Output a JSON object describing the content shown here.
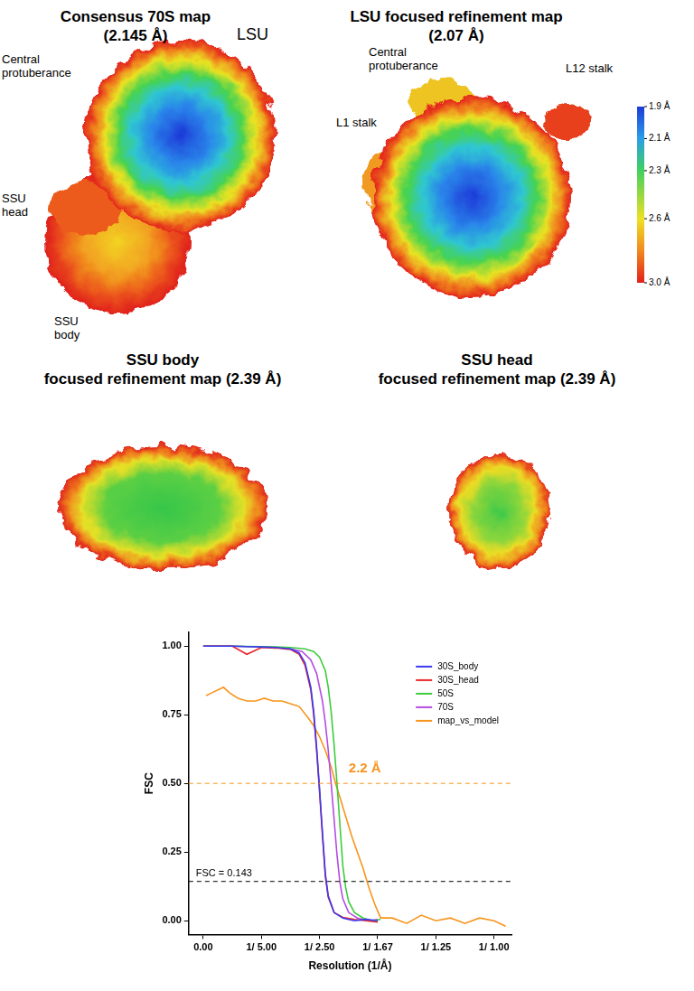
{
  "panels": [
    {
      "title": "Consensus 70S map",
      "subtitle": "(2.145 Å)",
      "labels": [
        "Central protuberance",
        "LSU",
        "SSU head",
        "SSU body"
      ]
    },
    {
      "title": "LSU focused refinement map",
      "subtitle": "(2.07 Å)",
      "labels": [
        "Central protuberance",
        "L1 stalk",
        "L12 stalk"
      ]
    },
    {
      "title": "SSU body",
      "subtitle": "focused refinement map (2.39 Å)"
    },
    {
      "title": "SSU head",
      "subtitle": "focused refinement map (2.39 Å)"
    }
  ],
  "colorbar": {
    "range": [
      1.9,
      3.0
    ],
    "ticks": [
      {
        "value": 1.9,
        "label": "1.9 Å"
      },
      {
        "value": 2.1,
        "label": "2.1 Å"
      },
      {
        "value": 2.3,
        "label": "2.3 Å"
      },
      {
        "value": 2.6,
        "label": "2.6 Å"
      },
      {
        "value": 3.0,
        "label": "3.0 Å"
      }
    ]
  },
  "chart_data": {
    "type": "line",
    "x_label": "Resolution (1/Å)",
    "y_label": "FSC",
    "xlim": [
      -0.05,
      1.06
    ],
    "ylim": [
      -0.05,
      1.05
    ],
    "xticks": [
      {
        "value": 0,
        "label": "0.00"
      },
      {
        "value": 0.2,
        "label": "1/ 5.00"
      },
      {
        "value": 0.4,
        "label": "1/ 2.50"
      },
      {
        "value": 0.6,
        "label": "1/ 1.67"
      },
      {
        "value": 0.8,
        "label": "1/ 1.25"
      },
      {
        "value": 1,
        "label": "1/ 1.00"
      }
    ],
    "yticks": [
      {
        "value": 0,
        "label": "0.00"
      },
      {
        "value": 0.25,
        "label": "0.25"
      },
      {
        "value": 0.5,
        "label": "0.50"
      },
      {
        "value": 0.75,
        "label": "0.75"
      },
      {
        "value": 1,
        "label": "1.00"
      }
    ],
    "grid": false,
    "legend": "upper right",
    "series": [
      {
        "name": "30S_body",
        "color": "#3a3af0",
        "x": [
          0.0,
          0.05,
          0.1,
          0.15,
          0.2,
          0.25,
          0.3,
          0.33,
          0.35,
          0.37,
          0.38,
          0.39,
          0.4,
          0.41,
          0.42,
          0.43,
          0.45,
          0.48,
          0.52,
          0.56,
          0.6
        ],
        "values": [
          1,
          1,
          1,
          0.998,
          0.997,
          0.995,
          0.99,
          0.975,
          0.94,
          0.85,
          0.76,
          0.63,
          0.48,
          0.32,
          0.17,
          0.09,
          0.03,
          0.01,
          0.0,
          0.005,
          0.0
        ]
      },
      {
        "name": "30S_head",
        "color": "#e8262a",
        "x": [
          0.0,
          0.05,
          0.1,
          0.15,
          0.2,
          0.25,
          0.3,
          0.33,
          0.35,
          0.37,
          0.38,
          0.39,
          0.4,
          0.41,
          0.42,
          0.43,
          0.45,
          0.48,
          0.52,
          0.56,
          0.6
        ],
        "values": [
          1,
          1,
          1,
          0.97,
          0.995,
          0.993,
          0.988,
          0.97,
          0.93,
          0.84,
          0.75,
          0.62,
          0.47,
          0.31,
          0.16,
          0.085,
          0.03,
          0.012,
          0.005,
          0.0,
          -0.005
        ]
      },
      {
        "name": "50S",
        "color": "#3dcc3d",
        "x": [
          0.0,
          0.05,
          0.1,
          0.15,
          0.2,
          0.25,
          0.3,
          0.35,
          0.38,
          0.4,
          0.42,
          0.43,
          0.44,
          0.45,
          0.46,
          0.47,
          0.48,
          0.49,
          0.5,
          0.52,
          0.55,
          0.58,
          0.61
        ],
        "values": [
          1,
          1,
          1,
          0.999,
          0.998,
          0.997,
          0.995,
          0.99,
          0.98,
          0.96,
          0.91,
          0.85,
          0.76,
          0.64,
          0.5,
          0.35,
          0.2,
          0.12,
          0.07,
          0.03,
          0.01,
          0.0,
          0.005
        ]
      },
      {
        "name": "70S",
        "color": "#b44be1",
        "x": [
          0.0,
          0.05,
          0.1,
          0.15,
          0.2,
          0.25,
          0.3,
          0.34,
          0.37,
          0.39,
          0.41,
          0.42,
          0.43,
          0.44,
          0.45,
          0.46,
          0.47,
          0.48,
          0.5,
          0.53,
          0.57,
          0.6
        ],
        "values": [
          1,
          1,
          1,
          0.998,
          0.997,
          0.995,
          0.99,
          0.98,
          0.95,
          0.9,
          0.8,
          0.72,
          0.62,
          0.5,
          0.37,
          0.24,
          0.14,
          0.08,
          0.03,
          0.01,
          0.0,
          0.005
        ]
      },
      {
        "name": "map_vs_model",
        "color": "#f7941d",
        "x": [
          0.01,
          0.03,
          0.05,
          0.07,
          0.09,
          0.12,
          0.15,
          0.18,
          0.21,
          0.24,
          0.27,
          0.3,
          0.33,
          0.36,
          0.38,
          0.4,
          0.42,
          0.44,
          0.455,
          0.47,
          0.49,
          0.51,
          0.53,
          0.55,
          0.57,
          0.59,
          0.61,
          0.65,
          0.7,
          0.75,
          0.8,
          0.85,
          0.9,
          0.95,
          1.0,
          1.04
        ],
        "values": [
          0.82,
          0.83,
          0.84,
          0.85,
          0.83,
          0.81,
          0.8,
          0.8,
          0.81,
          0.8,
          0.8,
          0.79,
          0.78,
          0.74,
          0.71,
          0.67,
          0.62,
          0.56,
          0.5,
          0.45,
          0.38,
          0.31,
          0.25,
          0.19,
          0.12,
          0.06,
          0.01,
          0.01,
          -0.01,
          0.02,
          0.0,
          0.01,
          -0.01,
          0.01,
          0.0,
          -0.02
        ]
      }
    ],
    "hlines": [
      {
        "value": 0.5,
        "color": "#f7941d",
        "line_style": "dashed"
      },
      {
        "value": 0.143,
        "color": "#000000",
        "line_style": "dashed",
        "label": "FSC = 0.143"
      }
    ],
    "annotations": [
      {
        "text": "2.2 Å",
        "x": 0.5,
        "y": 0.53,
        "color": "#f7941d"
      }
    ]
  }
}
